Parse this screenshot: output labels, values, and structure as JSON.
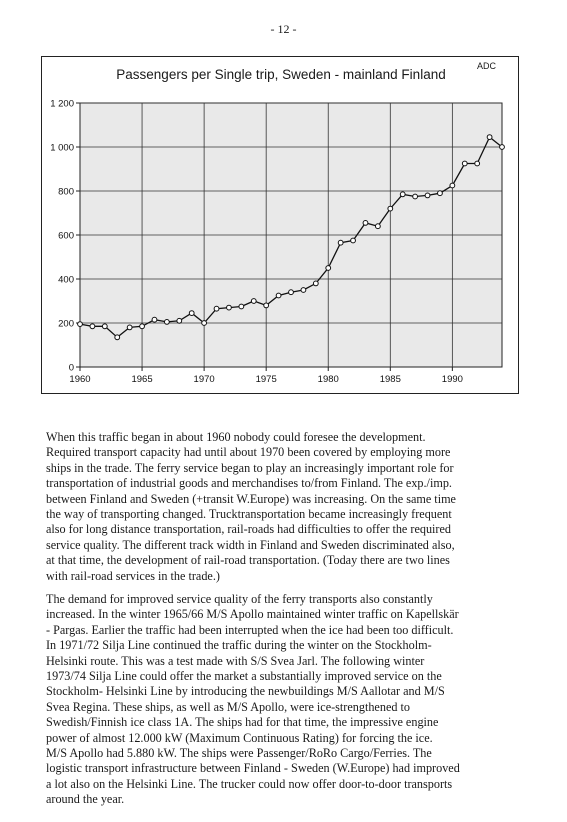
{
  "page": {
    "number": "- 12 -"
  },
  "chart_data": {
    "type": "line",
    "title": "Passengers per Single trip,  Sweden - mainland Finland",
    "corner_label": "ADC",
    "xlabel": "",
    "ylabel": "",
    "xlim": [
      1960,
      1994
    ],
    "ylim": [
      0,
      1200
    ],
    "x_ticks": [
      1960,
      1965,
      1970,
      1975,
      1980,
      1985,
      1990
    ],
    "y_ticks": [
      0,
      200,
      400,
      600,
      800,
      1000,
      1200
    ],
    "y_tick_labels": [
      "0",
      "200",
      "400",
      "600",
      "800",
      "1 000",
      "1 200"
    ],
    "grid": true,
    "legend": "none",
    "line_color": "#111111",
    "plot_background": "#e9e9e9",
    "series": [
      {
        "x": [
          1960,
          1961,
          1962,
          1963,
          1964,
          1965,
          1966,
          1967,
          1968,
          1969,
          1970,
          1971,
          1972,
          1973,
          1974,
          1975,
          1976,
          1977,
          1978,
          1979,
          1980,
          1981,
          1982,
          1983,
          1984,
          1985,
          1986,
          1987,
          1988,
          1989,
          1990,
          1991,
          1992,
          1993,
          1994
        ],
        "values": [
          195,
          185,
          185,
          135,
          180,
          185,
          215,
          205,
          210,
          245,
          200,
          265,
          270,
          275,
          300,
          280,
          325,
          340,
          350,
          380,
          450,
          565,
          575,
          655,
          640,
          720,
          785,
          775,
          780,
          790,
          825,
          925,
          925,
          1045,
          1000
        ]
      }
    ]
  },
  "text": {
    "para1": "When this traffic began in about 1960 nobody could foresee the development.\nRequired transport capacity had until about 1970 been covered by employing more\nships in the trade. The ferry service began to play an increasingly important role for\ntransportation of industrial goods and merchandises to/from Finland. The exp./imp.\nbetween Finland and Sweden (+transit W.Europe) was increasing. On the same time\nthe way of transporting changed. Trucktransportation became increasingly frequent\nalso for long distance transportation, rail-roads had difficulties to offer the required\nservice quality. The different track width in Finland and Sweden discriminated also,\nat that time, the development of rail-road transportation. (Today there are two lines\nwith rail-road services in the trade.)",
    "para2": "The demand for improved service quality of the ferry transports also constantly\nincreased. In the winter 1965/66 M/S Apollo maintained winter traffic on Kapellskär\n- Pargas. Earlier the traffic had been interrupted when the ice had been too difficult.\nIn 1971/72 Silja Line continued the traffic during the winter on the Stockholm-\nHelsinki route. This was a test made with S/S Svea Jarl. The following  winter\n1973/74 Silja Line could offer the market a substantially improved service on the\nStockholm- Helsinki Line by introducing the newbuildings M/S Aallotar and M/S\nSvea Regina. These ships, as well as M/S Apollo, were ice-strengthened to\nSwedish/Finnish ice class 1A. The ships had for that time, the impressive engine\npower of almost 12.000 kW (Maximum Continuous Rating) for forcing the ice.\nM/S Apollo had 5.880 kW. The ships were Passenger/RoRo Cargo/Ferries. The\nlogistic transport infrastructure between Finland - Sweden (W.Europe) had improved\na lot also on the Helsinki Line. The trucker could now offer door-to-door transports\naround the year."
  }
}
